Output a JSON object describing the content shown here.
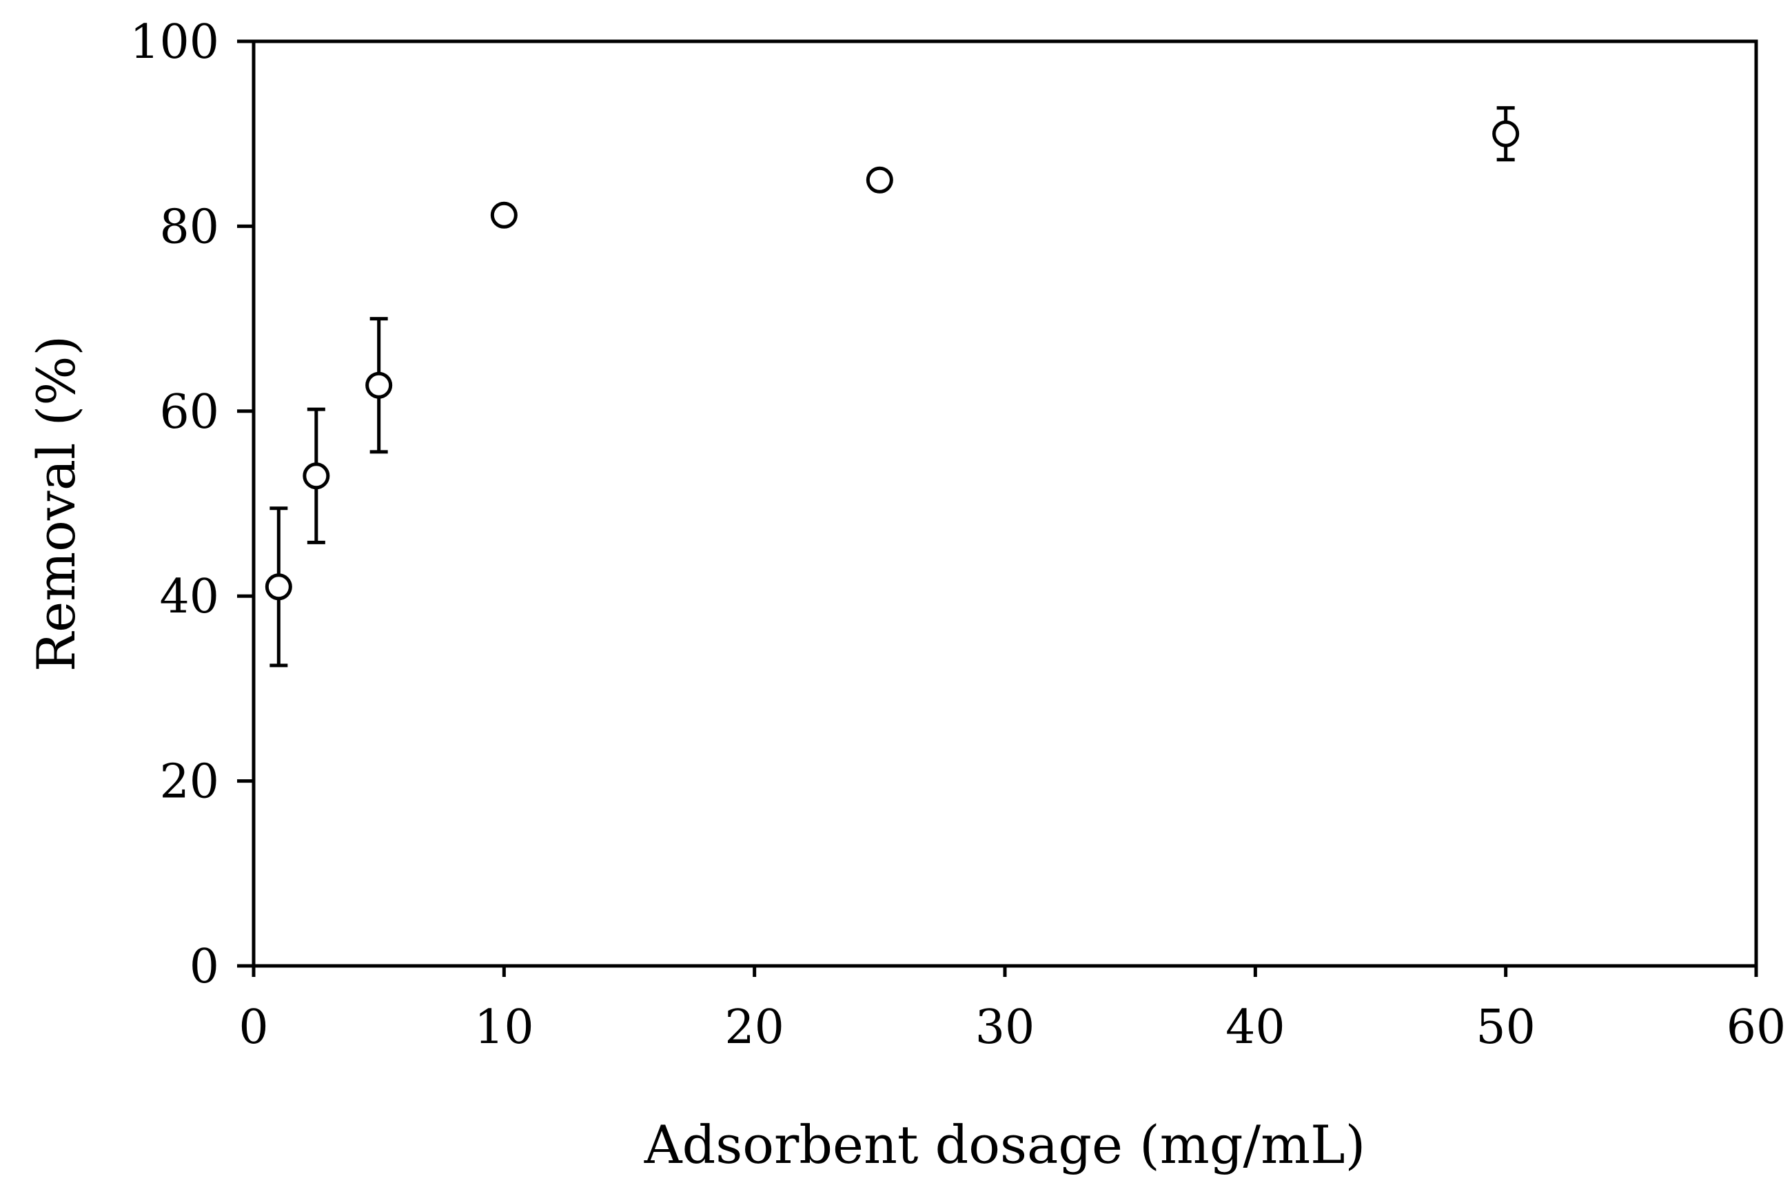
{
  "chart_data": {
    "type": "scatter",
    "title": "",
    "xlabel": "Adsorbent dosage (mg/mL)",
    "ylabel": "Removal (%)",
    "xlim": [
      0,
      60
    ],
    "ylim": [
      0,
      100
    ],
    "xticks": [
      0,
      10,
      20,
      30,
      40,
      50,
      60
    ],
    "yticks": [
      0,
      20,
      40,
      60,
      80,
      100
    ],
    "grid": false,
    "marker": "open-circle",
    "series": [
      {
        "name": "Removal",
        "x": [
          1,
          2.5,
          5,
          10,
          25,
          50
        ],
        "y": [
          41,
          53,
          62.8,
          81.2,
          85,
          90
        ],
        "error": [
          8.5,
          7.2,
          7.2,
          0.5,
          0.8,
          2.8
        ]
      }
    ]
  },
  "colors": {
    "axis": "#000000",
    "marker": "#000000",
    "background": "#ffffff"
  }
}
